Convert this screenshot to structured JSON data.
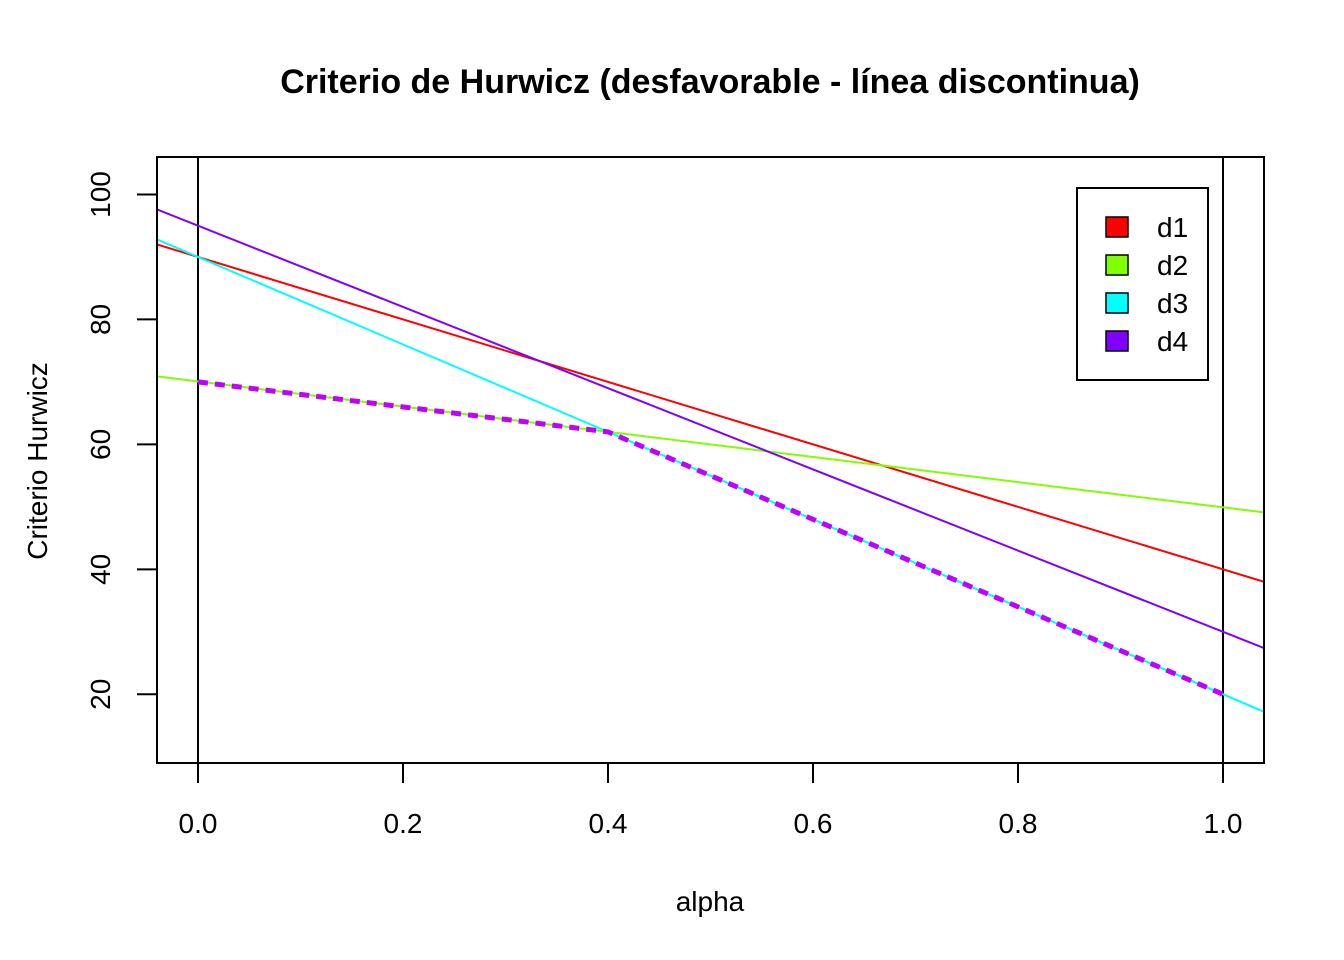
{
  "chart_data": {
    "type": "line",
    "title": "Criterio de Hurwicz (desfavorable - línea discontinua)",
    "xlabel": "alpha",
    "ylabel": "Criterio Hurwicz",
    "xlim": [
      -0.04,
      1.04
    ],
    "ylim": [
      9,
      106
    ],
    "xticks": [
      "0.0",
      "0.2",
      "0.4",
      "0.6",
      "0.8",
      "1.0"
    ],
    "yticks": [
      "20",
      "40",
      "60",
      "80",
      "100"
    ],
    "xtick_values": [
      0,
      0.2,
      0.4,
      0.6,
      0.8,
      1.0
    ],
    "ytick_values": [
      20,
      40,
      60,
      80,
      100
    ],
    "vertical_lines": [
      0,
      1
    ],
    "grid": false,
    "legend_position": "top-right",
    "series": [
      {
        "name": "d1",
        "color": "#FF0000",
        "x": [
          -0.04,
          1.04
        ],
        "y": [
          92,
          38
        ]
      },
      {
        "name": "d2",
        "color": "#80FF00",
        "x": [
          -0.04,
          1.04
        ],
        "y": [
          70.88,
          49.12
        ]
      },
      {
        "name": "d3",
        "color": "#00FFFF",
        "x": [
          -0.04,
          1.04
        ],
        "y": [
          92.8,
          17.2
        ]
      },
      {
        "name": "d4",
        "color": "#8000FF",
        "x": [
          -0.04,
          1.04
        ],
        "y": [
          97.6,
          27.4
        ]
      }
    ],
    "worst_case": {
      "color": "#BF00FF",
      "style": "dashed",
      "x": [
        0,
        0.4,
        1.0
      ],
      "y": [
        70,
        62,
        20
      ]
    }
  }
}
